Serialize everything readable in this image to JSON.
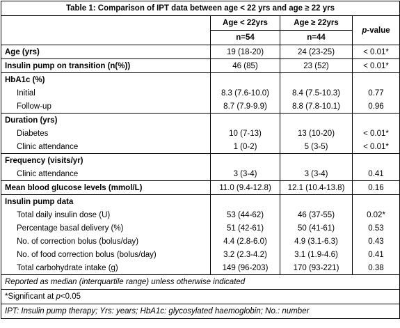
{
  "table": {
    "title": "Table 1: Comparison of IPT data between age < 22 yrs and age ≥ 22 yrs",
    "header": {
      "group1": "Age < 22yrs",
      "group1_n": "n=54",
      "group2": "Age ≥ 22yrs",
      "group2_n": "n=44",
      "p_value": "p-value"
    },
    "groups": [
      {
        "rows": [
          [
            "Age (yrs)",
            "19 (18-20)",
            "24 (23-25)",
            "< 0.01*"
          ]
        ]
      },
      {
        "rows": [
          [
            "Insulin pump on transition (n(%))",
            "46 (85)",
            "23 (52)",
            "< 0.01*"
          ]
        ]
      },
      {
        "heading": "HbA1c (%)",
        "rows": [
          [
            "Initial",
            "8.3 (7.6-10.0)",
            "8.4 (7.5-10.3)",
            "0.77"
          ],
          [
            "Follow-up",
            "8.7 (7.9-9.9)",
            "8.8 (7.8-10.1)",
            "0.96"
          ]
        ]
      },
      {
        "heading": "Duration (yrs)",
        "rows": [
          [
            "Diabetes",
            "10 (7-13)",
            "13 (10-20)",
            "< 0.01*"
          ],
          [
            "Clinic attendance",
            "1 (0-2)",
            "5 (3-5)",
            "< 0.01*"
          ]
        ]
      },
      {
        "heading": "Frequency (visits/yr)",
        "rows": [
          [
            "Clinic attendance",
            "3 (3-4)",
            "3 (3-4)",
            "0.41"
          ]
        ]
      },
      {
        "rows": [
          [
            "Mean blood glucose levels (mmol/L)",
            "11.0 (9.4-12.8)",
            "12.1 (10.4-13.8)",
            "0.16"
          ]
        ]
      },
      {
        "heading": "Insulin pump data",
        "rows": [
          [
            "Total daily insulin dose (U)",
            "53 (44-62)",
            "46 (37-55)",
            "0.02*"
          ],
          [
            "Percentage basal delivery (%)",
            "51 (42-61)",
            "50 (41-61)",
            "0.53"
          ],
          [
            "No. of correction bolus (bolus/day)",
            "4.4 (2.8-6.0)",
            "4.9 (3.1-6.3)",
            "0.43"
          ],
          [
            "No. of food correction bolus (bolus/day)",
            "3.2 (2.3-4.2)",
            "3.1 (1.9-4.6)",
            "0.41"
          ],
          [
            "Total carbohydrate intake (g)",
            "149 (96-203)",
            "170 (93-221)",
            "0.38"
          ]
        ]
      }
    ],
    "notes": [
      "Reported as median (interquartile range) unless otherwise indicated",
      [
        "*Significant at ",
        "p",
        "<0.05"
      ],
      "IPT: Insulin pump therapy; Yrs: years; HbA1c: glycosylated haemoglobin; No.: number"
    ]
  }
}
